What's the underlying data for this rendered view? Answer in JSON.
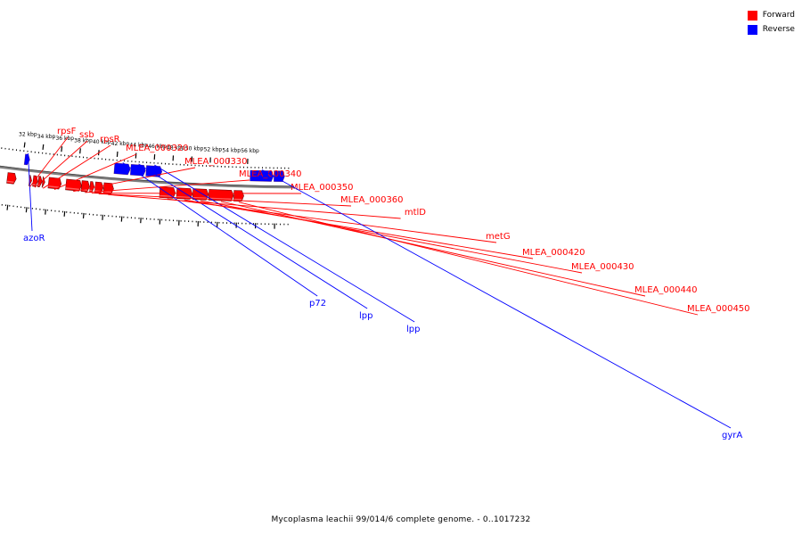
{
  "legend": {
    "items": [
      {
        "label": "Forward",
        "color": "#ff0000"
      },
      {
        "label": "Reverse",
        "color": "#0000ff"
      }
    ]
  },
  "caption": "Mycoplasma leachii 99/014/6 complete genome. - 0..1017232",
  "colors": {
    "forward": "#ff0000",
    "reverse": "#0000ff",
    "backbone": "#7f7f7f"
  },
  "ticks": [
    {
      "kbp": 32,
      "label": "32 kbp"
    },
    {
      "kbp": 34,
      "label": "34 kbp"
    },
    {
      "kbp": 36,
      "label": "36 kbp"
    },
    {
      "kbp": 38,
      "label": "38 kbp"
    },
    {
      "kbp": 40,
      "label": "40 kbp"
    },
    {
      "kbp": 42,
      "label": "42 kbp"
    },
    {
      "kbp": 44,
      "label": "44 kbp"
    },
    {
      "kbp": 46,
      "label": "46 kbp"
    },
    {
      "kbp": 48,
      "label": "48 kbp"
    },
    {
      "kbp": 50,
      "label": "50 kbp"
    },
    {
      "kbp": 52,
      "label": "52 kbp"
    },
    {
      "kbp": 54,
      "label": "54 kbp"
    },
    {
      "kbp": 56,
      "label": "56 kbp"
    }
  ],
  "genes": [
    {
      "name": "",
      "strand": "forward",
      "start_kbp": 30.6,
      "end_kbp": 31.55
    },
    {
      "name": "azoR",
      "strand": "reverse",
      "start_kbp": 32.2,
      "end_kbp": 32.75
    },
    {
      "name": "rpsF",
      "strand": "forward",
      "start_kbp": 32.95,
      "end_kbp": 33.2
    },
    {
      "name": "ssb",
      "strand": "forward",
      "start_kbp": 33.35,
      "end_kbp": 33.85
    },
    {
      "name": "",
      "strand": "forward",
      "start_kbp": 33.9,
      "end_kbp": 34.3
    },
    {
      "name": "rpsR",
      "strand": "forward",
      "start_kbp": 34.35,
      "end_kbp": 34.6
    },
    {
      "name": "MLEA_000320",
      "strand": "forward",
      "start_kbp": 35.0,
      "end_kbp": 36.35
    },
    {
      "name": "MLEA_000330",
      "strand": "forward",
      "start_kbp": 36.85,
      "end_kbp": 38.5
    },
    {
      "name": "MLEA_000340",
      "strand": "forward",
      "start_kbp": 38.5,
      "end_kbp": 39.35
    },
    {
      "name": "MLEA_000350",
      "strand": "forward",
      "start_kbp": 39.4,
      "end_kbp": 39.85
    },
    {
      "name": "MLEA_000360",
      "strand": "forward",
      "start_kbp": 39.95,
      "end_kbp": 40.8
    },
    {
      "name": "mtlD",
      "strand": "forward",
      "start_kbp": 40.85,
      "end_kbp": 41.9
    },
    {
      "name": "p72",
      "strand": "reverse",
      "start_kbp": 41.8,
      "end_kbp": 43.5
    },
    {
      "name": "lpp",
      "strand": "reverse",
      "start_kbp": 43.55,
      "end_kbp": 45.15
    },
    {
      "name": "lpp",
      "strand": "reverse",
      "start_kbp": 45.2,
      "end_kbp": 46.9
    },
    {
      "name": "metG",
      "strand": "forward",
      "start_kbp": 46.8,
      "end_kbp": 48.45
    },
    {
      "name": "MLEA_000420",
      "strand": "forward",
      "start_kbp": 48.6,
      "end_kbp": 50.25
    },
    {
      "name": "MLEA_000430",
      "strand": "forward",
      "start_kbp": 50.3,
      "end_kbp": 51.95
    },
    {
      "name": "MLEA_000440",
      "strand": "forward",
      "start_kbp": 52.0,
      "end_kbp": 54.6
    },
    {
      "name": "MLEA_000450",
      "strand": "forward",
      "start_kbp": 54.65,
      "end_kbp": 55.7
    },
    {
      "name": "gyrA",
      "strand": "reverse",
      "start_kbp": 56.3,
      "end_kbp": 58.8
    },
    {
      "name": "",
      "strand": "reverse",
      "start_kbp": 58.85,
      "end_kbp": 60.0
    }
  ]
}
